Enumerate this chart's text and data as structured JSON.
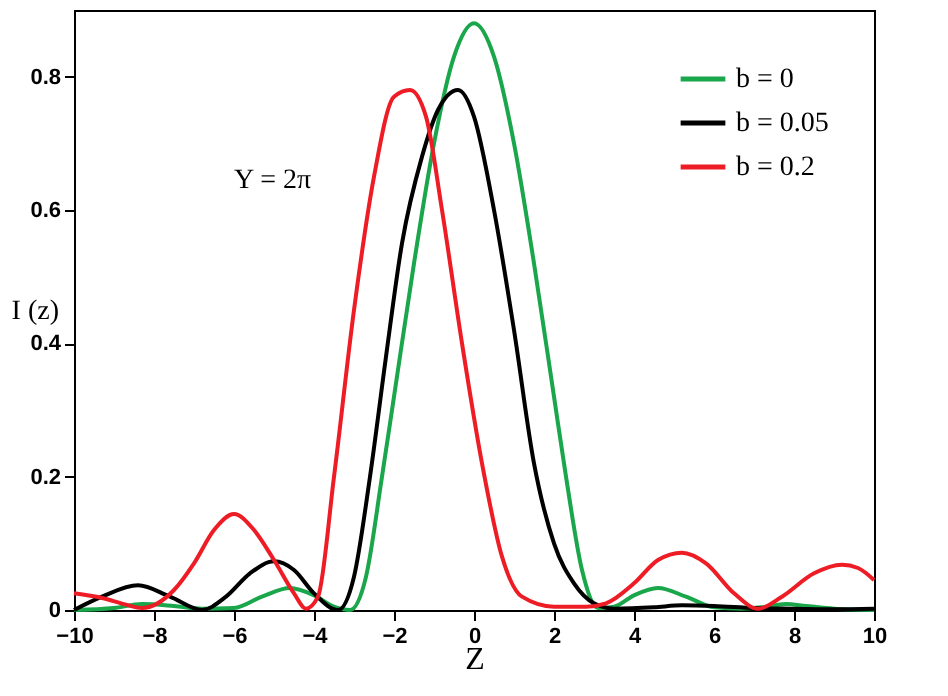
{
  "chart_data": {
    "type": "line",
    "xlabel": "Z",
    "ylabel": "I (z)",
    "annotations": [
      "Y = 2π"
    ],
    "xlim": [
      -10,
      10
    ],
    "xticks": [
      -10,
      -8,
      -6,
      -4,
      -2,
      0,
      2,
      4,
      6,
      8,
      10
    ],
    "ylim": [
      0,
      0.9
    ],
    "yticks": [
      0,
      0.2,
      0.4,
      0.6,
      0.8
    ],
    "grid": false,
    "legend": "top right",
    "marker": "none",
    "line_style": "solid",
    "series": [
      {
        "name": "b = 0",
        "color": "#1aa64a",
        "x": [
          -10,
          -9,
          -8.3,
          -7.5,
          -6.8,
          -6,
          -5.3,
          -4.6,
          -4,
          -3.5,
          -3.1,
          -2.7,
          -2.3,
          -2,
          -1.5,
          -1,
          -0.5,
          0,
          0.5,
          1,
          1.5,
          2,
          2.3,
          2.7,
          3.1,
          3.5,
          4,
          4.6,
          5.3,
          6,
          6.7,
          7.2,
          7.8,
          8.3,
          9,
          10
        ],
        "values": [
          0,
          0.003,
          0.009,
          0.006,
          0.002,
          0.003,
          0.02,
          0.033,
          0.022,
          0.005,
          0,
          0.05,
          0.2,
          0.32,
          0.52,
          0.7,
          0.83,
          0.88,
          0.83,
          0.7,
          0.52,
          0.32,
          0.2,
          0.06,
          0.003,
          0.005,
          0.022,
          0.033,
          0.02,
          0.004,
          0.002,
          0.004,
          0.009,
          0.006,
          0.002,
          0
        ]
      },
      {
        "name": "b = 0.05",
        "color": "#000000",
        "x": [
          -10,
          -9.3,
          -8.4,
          -7.6,
          -6.8,
          -6.2,
          -5.6,
          -5,
          -4.5,
          -4,
          -3.4,
          -3,
          -2.6,
          -2.2,
          -1.8,
          -1.3,
          -0.9,
          -0.4,
          0,
          0.5,
          1,
          1.5,
          2,
          2.5,
          3,
          3.5,
          4.5,
          5.2,
          6,
          7,
          8,
          9,
          10
        ],
        "values": [
          0,
          0.02,
          0.037,
          0.02,
          0,
          0.02,
          0.055,
          0.073,
          0.06,
          0.025,
          0,
          0.05,
          0.2,
          0.38,
          0.55,
          0.68,
          0.75,
          0.78,
          0.74,
          0.6,
          0.42,
          0.22,
          0.1,
          0.04,
          0.01,
          0.002,
          0.004,
          0.007,
          0.006,
          0.003,
          0.002,
          0.001,
          0.002
        ]
      },
      {
        "name": "b = 0.2",
        "color": "#ee1c25",
        "x": [
          -10,
          -9.3,
          -8.7,
          -8.3,
          -7.5,
          -7,
          -6.5,
          -6,
          -5.5,
          -5,
          -4.5,
          -4.2,
          -3.9,
          -3.5,
          -3,
          -2.5,
          -2,
          -1.6,
          -1.2,
          -0.8,
          -0.3,
          0.2,
          0.7,
          1.2,
          2,
          2.8,
          3.3,
          4,
          4.6,
          5.2,
          5.8,
          6.5,
          7.1,
          7.7,
          8.5,
          9.2,
          9.6,
          10
        ],
        "values": [
          0.025,
          0.018,
          0.008,
          0.003,
          0.03,
          0.07,
          0.12,
          0.144,
          0.12,
          0.075,
          0.025,
          0.002,
          0.02,
          0.2,
          0.45,
          0.65,
          0.77,
          0.78,
          0.74,
          0.6,
          0.4,
          0.22,
          0.08,
          0.02,
          0.005,
          0.005,
          0.01,
          0.04,
          0.075,
          0.086,
          0.07,
          0.025,
          0.002,
          0.02,
          0.055,
          0.068,
          0.063,
          0.045
        ]
      }
    ]
  }
}
